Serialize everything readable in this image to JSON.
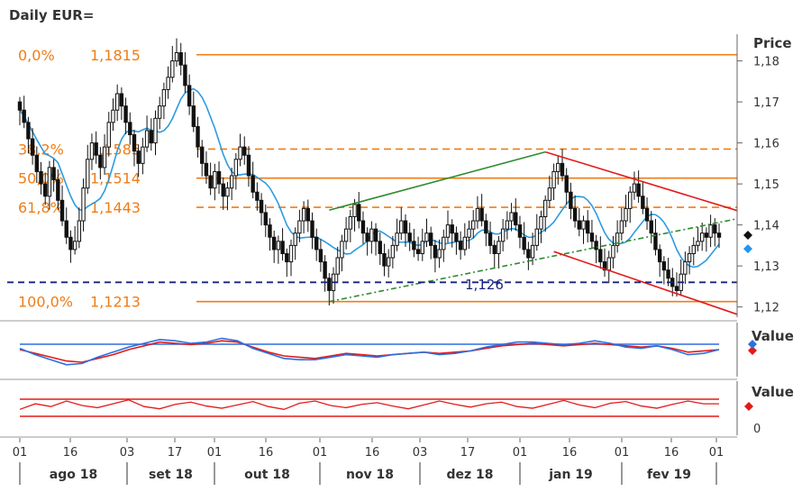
{
  "chart_data": {
    "type": "candlestick",
    "title": "Daily EUR=",
    "price_axis": {
      "title": "Price",
      "ticks": [
        "1,18",
        "1,17",
        "1,16",
        "1,15",
        "1,14",
        "1,13",
        "1,12"
      ],
      "tick_values": [
        1.18,
        1.17,
        1.16,
        1.15,
        1.14,
        1.13,
        1.12
      ],
      "ylim": [
        1.1175,
        1.1865
      ]
    },
    "fibonacci_levels": [
      {
        "pct": "0,0%",
        "price": "1,1815",
        "value": 1.1815,
        "style": "solid"
      },
      {
        "pct": "38,2%",
        "price": "1,1585",
        "value": 1.1585,
        "style": "dashed"
      },
      {
        "pct": "50,0%",
        "price": "1,1514",
        "value": 1.1514,
        "style": "solid"
      },
      {
        "pct": "61,8%",
        "price": "1,1443",
        "value": 1.1443,
        "style": "dashed"
      },
      {
        "pct": "100,0%",
        "price": "1,1213",
        "value": 1.1213,
        "style": "solid"
      }
    ],
    "support_line": {
      "label": "1,126",
      "value": 1.126
    },
    "last_markers": [
      {
        "color": "#111111",
        "value": 1.1375
      },
      {
        "color": "#2196f3",
        "value": 1.1355
      }
    ],
    "x_ticks": [
      "01",
      "16",
      "03",
      "17",
      "01",
      "16",
      "01",
      "16",
      "03",
      "17",
      "01",
      "16",
      "01",
      "16",
      "01"
    ],
    "months": [
      "ago 18",
      "set 18",
      "out 18",
      "nov 18",
      "dez 18",
      "jan 19",
      "fev 19"
    ],
    "colors": {
      "candle": "#111111",
      "moving_average": "#2d9be0",
      "fibonacci": "#f07c14",
      "support": "#1a237e",
      "channel_up": "#2e8b2e",
      "channel_down": "#e41a1a",
      "oscillator_1": "#e41a1a",
      "oscillator_2": "#2d6fe0"
    },
    "candles_close": [
      1.168,
      1.165,
      1.161,
      1.157,
      1.153,
      1.15,
      1.147,
      1.154,
      1.151,
      1.146,
      1.141,
      1.137,
      1.134,
      1.136,
      1.141,
      1.149,
      1.156,
      1.16,
      1.157,
      1.154,
      1.159,
      1.165,
      1.168,
      1.172,
      1.169,
      1.165,
      1.162,
      1.158,
      1.155,
      1.159,
      1.163,
      1.16,
      1.166,
      1.169,
      1.173,
      1.176,
      1.18,
      1.182,
      1.179,
      1.174,
      1.169,
      1.164,
      1.159,
      1.155,
      1.152,
      1.149,
      1.153,
      1.15,
      1.147,
      1.149,
      1.152,
      1.156,
      1.159,
      1.157,
      1.152,
      1.148,
      1.146,
      1.143,
      1.14,
      1.137,
      1.134,
      1.136,
      1.133,
      1.131,
      1.135,
      1.138,
      1.141,
      1.144,
      1.141,
      1.137,
      1.134,
      1.131,
      1.127,
      1.124,
      1.128,
      1.132,
      1.136,
      1.139,
      1.142,
      1.145,
      1.141,
      1.138,
      1.136,
      1.139,
      1.136,
      1.133,
      1.13,
      1.132,
      1.135,
      1.138,
      1.141,
      1.138,
      1.136,
      1.134,
      1.133,
      1.136,
      1.138,
      1.135,
      1.132,
      1.134,
      1.137,
      1.14,
      1.138,
      1.136,
      1.134,
      1.137,
      1.139,
      1.141,
      1.144,
      1.141,
      1.138,
      1.135,
      1.133,
      1.136,
      1.139,
      1.141,
      1.143,
      1.14,
      1.137,
      1.134,
      1.132,
      1.135,
      1.139,
      1.142,
      1.146,
      1.149,
      1.153,
      1.155,
      1.152,
      1.148,
      1.144,
      1.141,
      1.139,
      1.141,
      1.138,
      1.136,
      1.134,
      1.131,
      1.129,
      1.132,
      1.135,
      1.138,
      1.141,
      1.144,
      1.148,
      1.15,
      1.147,
      1.144,
      1.141,
      1.138,
      1.134,
      1.131,
      1.129,
      1.127,
      1.125,
      1.124,
      1.128,
      1.131,
      1.133,
      1.135,
      1.136,
      1.138,
      1.137,
      1.14,
      1.138,
      1.137
    ],
    "oscillator_1_values": [
      0.0,
      -0.3,
      -0.6,
      -0.9,
      -1.0,
      -0.7,
      -0.4,
      0.0,
      0.3,
      0.6,
      0.5,
      0.4,
      0.5,
      0.7,
      0.6,
      0.2,
      -0.2,
      -0.5,
      -0.6,
      -0.7,
      -0.5,
      -0.3,
      -0.4,
      -0.5,
      -0.4,
      -0.3,
      -0.2,
      -0.3,
      -0.2,
      -0.1,
      0.1,
      0.3,
      0.4,
      0.5,
      0.4,
      0.3,
      0.4,
      0.5,
      0.4,
      0.3,
      0.2,
      0.3,
      0.1,
      -0.2,
      -0.1,
      0.0
    ],
    "oscillator_2_values": [
      0.1,
      -0.4,
      -0.8,
      -1.2,
      -1.1,
      -0.6,
      -0.2,
      0.2,
      0.5,
      0.8,
      0.7,
      0.5,
      0.6,
      0.9,
      0.7,
      0.1,
      -0.3,
      -0.7,
      -0.8,
      -0.8,
      -0.6,
      -0.4,
      -0.5,
      -0.6,
      -0.4,
      -0.3,
      -0.2,
      -0.4,
      -0.3,
      -0.1,
      0.2,
      0.4,
      0.6,
      0.6,
      0.5,
      0.4,
      0.5,
      0.7,
      0.5,
      0.2,
      0.1,
      0.3,
      0.0,
      -0.4,
      -0.3,
      0.0
    ],
    "panel2_axis": {
      "title": "Value"
    },
    "panel3_axis": {
      "title": "Value",
      "ticks": [
        "0"
      ]
    },
    "panel3_values": [
      0.35,
      0.45,
      0.4,
      0.5,
      0.42,
      0.38,
      0.45,
      0.52,
      0.4,
      0.36,
      0.44,
      0.48,
      0.41,
      0.37,
      0.43,
      0.49,
      0.4,
      0.35,
      0.46,
      0.5,
      0.42,
      0.38,
      0.44,
      0.47,
      0.41,
      0.36,
      0.43,
      0.5,
      0.44,
      0.39,
      0.45,
      0.48,
      0.4,
      0.37,
      0.44,
      0.51,
      0.43,
      0.38,
      0.46,
      0.49,
      0.41,
      0.37,
      0.44,
      0.5,
      0.45,
      0.45
    ]
  }
}
